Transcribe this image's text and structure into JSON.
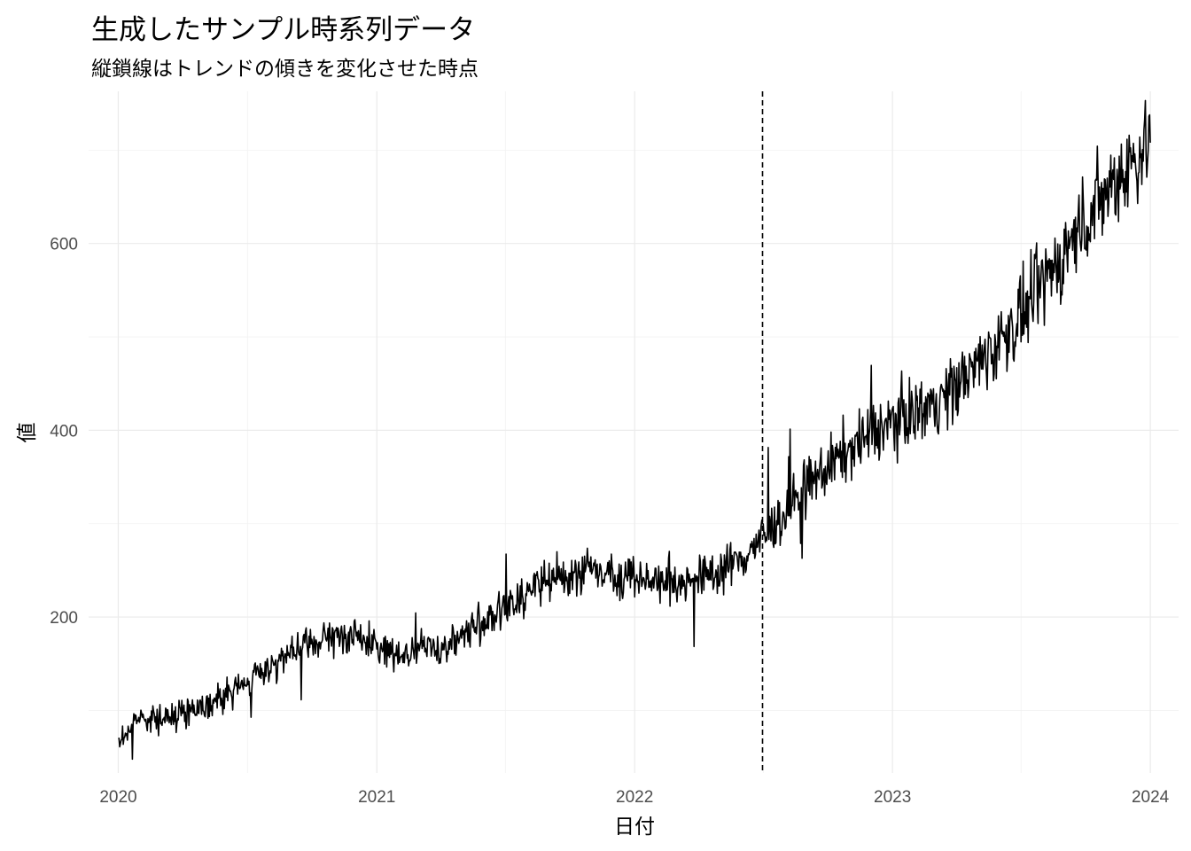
{
  "chart_data": {
    "type": "line",
    "title": "生成したサンプル時系列データ",
    "subtitle": "縦鎖線はトレンドの傾きを変化させた時点",
    "xlabel": "日付",
    "ylabel": "値",
    "x_ticks": [
      "2020",
      "2021",
      "2022",
      "2023",
      "2024"
    ],
    "y_ticks": [
      200,
      400,
      600
    ],
    "xlim": [
      "2019-11-20",
      "2024-02-10"
    ],
    "ylim": [
      33,
      763
    ],
    "grid": true,
    "legend": "none",
    "line_color": "#000000",
    "vline": {
      "date": "2022-07-01",
      "style": "dashed"
    },
    "series": [
      {
        "x": [
          "2020-01-01",
          "2020-02-01",
          "2020-03-01",
          "2020-04-01",
          "2020-05-01",
          "2020-06-01",
          "2020-07-01",
          "2020-08-01",
          "2020-09-01",
          "2020-10-01",
          "2020-11-01",
          "2020-12-01",
          "2021-01-01",
          "2021-02-01",
          "2021-03-01",
          "2021-04-01",
          "2021-05-01",
          "2021-06-01",
          "2021-07-01",
          "2021-08-01",
          "2021-09-01",
          "2021-10-01",
          "2021-11-01",
          "2021-12-01",
          "2022-01-01",
          "2022-02-01",
          "2022-03-01",
          "2022-04-01",
          "2022-05-01",
          "2022-06-01",
          "2022-07-01",
          "2022-08-01",
          "2022-09-01",
          "2022-10-01",
          "2022-11-01",
          "2022-12-01",
          "2023-01-01",
          "2023-02-01",
          "2023-03-01",
          "2023-04-01",
          "2023-05-01",
          "2023-06-01",
          "2023-07-01",
          "2023-08-01",
          "2023-09-01",
          "2023-10-01",
          "2023-11-01",
          "2023-12-01",
          "2024-01-01"
        ],
        "values": [
          65,
          95,
          90,
          98,
          105,
          115,
          130,
          148,
          160,
          170,
          178,
          180,
          168,
          160,
          165,
          168,
          180,
          195,
          210,
          225,
          238,
          245,
          250,
          248,
          242,
          240,
          238,
          242,
          250,
          262,
          285,
          310,
          340,
          360,
          380,
          395,
          410,
          420,
          430,
          448,
          470,
          495,
          520,
          555,
          590,
          625,
          658,
          685,
          710
        ]
      }
    ]
  }
}
